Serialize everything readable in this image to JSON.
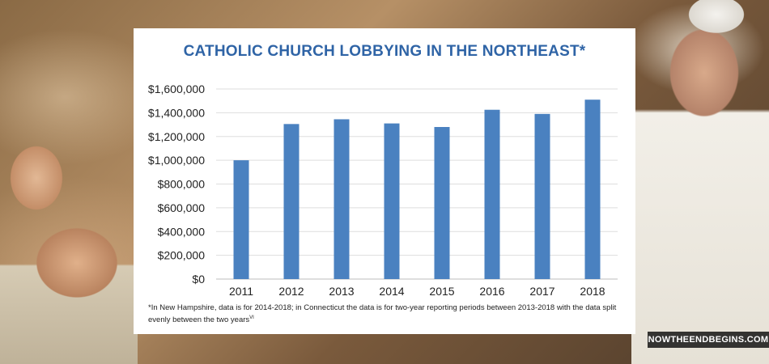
{
  "chart_data": {
    "type": "bar",
    "title": "CATHOLIC CHURCH LOBBYING IN THE NORTHEAST*",
    "categories": [
      "2011",
      "2012",
      "2013",
      "2014",
      "2015",
      "2016",
      "2017",
      "2018"
    ],
    "values": [
      1000000,
      1305000,
      1345000,
      1310000,
      1280000,
      1425000,
      1390000,
      1510000
    ],
    "ylim": [
      0,
      1600000
    ],
    "yticks": [
      "$0",
      "$200,000",
      "$400,000",
      "$600,000",
      "$800,000",
      "$1,000,000",
      "$1,200,000",
      "$1,400,000",
      "$1,600,000"
    ],
    "ytick_values": [
      0,
      200000,
      400000,
      600000,
      800000,
      1000000,
      1200000,
      1400000,
      1600000
    ],
    "grid": true,
    "bar_color": "#4a81c0",
    "title_color": "#2f64a6",
    "footnote": "*In New Hampshire, data is for 2014-2018; in Connecticut the data is for two-year reporting periods between 2013-2018 with the data split evenly between the two years",
    "footnote_ref": "VI"
  },
  "watermark": {
    "text": "NOWTHEENDBEGINS.COM"
  }
}
